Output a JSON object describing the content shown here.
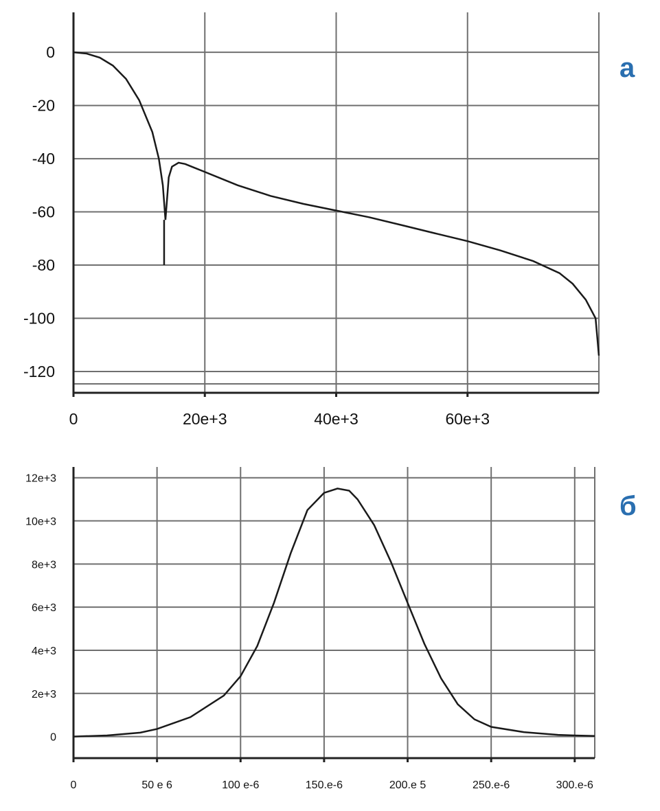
{
  "chart_data": [
    {
      "type": "line",
      "panel_label": "а",
      "xlim": [
        0,
        80000
      ],
      "ylim": [
        -128,
        15
      ],
      "x_ticks": [
        0,
        20000,
        40000,
        60000
      ],
      "x_tick_labels": [
        "0",
        "20e+3",
        "40e+3",
        "60e+3"
      ],
      "y_ticks": [
        0,
        -20,
        -40,
        -60,
        -80,
        -100,
        -120
      ],
      "y_tick_labels": [
        "0",
        "-20",
        "-40",
        "-60",
        "-80",
        "-100",
        "-120"
      ],
      "grid": true,
      "series": [
        {
          "x": [
            0,
            2000,
            4000,
            6000,
            8000,
            10000,
            12000,
            13000,
            13600,
            14000,
            14500,
            15000,
            16000,
            17000,
            18000,
            20000,
            25000,
            30000,
            35000,
            40000,
            45000,
            50000,
            55000,
            60000,
            65000,
            70000,
            74000,
            76000,
            78000,
            79500,
            80000
          ],
          "y": [
            0,
            -0.5,
            -2,
            -5,
            -10,
            -18,
            -30,
            -40,
            -50,
            -63,
            -47,
            -43,
            -41.5,
            -42,
            -43,
            -45,
            -50,
            -54,
            -57,
            -59.5,
            -62,
            -65,
            -68,
            -71,
            -74.5,
            -78.5,
            -83,
            -87,
            -93,
            -100,
            -114
          ]
        }
      ],
      "spike": {
        "x": 13800,
        "y": -80
      }
    },
    {
      "type": "line",
      "panel_label": "б",
      "xlim": [
        0,
        0.000312
      ],
      "ylim": [
        -1000,
        12500
      ],
      "x_ticks": [
        0,
        5e-05,
        0.0001,
        0.00015,
        0.0002,
        0.00025,
        0.0003
      ],
      "x_tick_labels": [
        "0",
        "50 e 6",
        "100 e-6",
        "150.e-6",
        "200.e 5",
        "250.e-6",
        "300.e-6"
      ],
      "y_ticks": [
        0,
        2000,
        4000,
        6000,
        8000,
        10000,
        12000
      ],
      "y_tick_labels": [
        "0",
        "2e+3",
        "4e+3",
        "6e+3",
        "8e+3",
        "10e+3",
        "12e+3"
      ],
      "grid": true,
      "series": [
        {
          "x": [
            0,
            2e-05,
            4e-05,
            5e-05,
            7e-05,
            9e-05,
            0.0001,
            0.00011,
            0.00012,
            0.00013,
            0.00014,
            0.00015,
            0.000158,
            0.000165,
            0.00017,
            0.00018,
            0.00019,
            0.0002,
            0.00021,
            0.00022,
            0.00023,
            0.00024,
            0.00025,
            0.00027,
            0.00029,
            0.0003,
            0.000312
          ],
          "y": [
            0,
            50,
            180,
            350,
            900,
            1900,
            2800,
            4200,
            6200,
            8500,
            10500,
            11300,
            11500,
            11400,
            11000,
            9800,
            8100,
            6200,
            4300,
            2700,
            1500,
            800,
            450,
            200,
            80,
            50,
            30
          ]
        }
      ]
    }
  ]
}
